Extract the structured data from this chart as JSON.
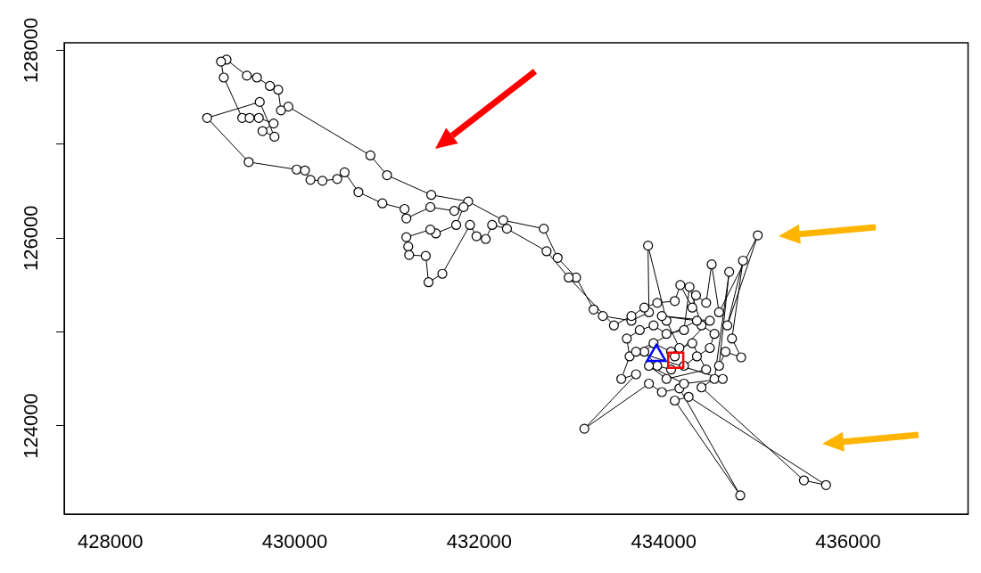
{
  "chart_data": {
    "type": "line",
    "xlim": [
      427500,
      437300
    ],
    "ylim": [
      123060,
      128080
    ],
    "xticks": [
      428000,
      430000,
      432000,
      434000,
      436000
    ],
    "yticks": [
      124000,
      {
        "value": 125000,
        "label": null
      },
      126000,
      {
        "value": 127000,
        "label": null
      },
      128000
    ],
    "series": [
      {
        "color": "#000000",
        "marker": "circle",
        "x": [
          434170,
          434030,
          433830,
          433840,
          433650,
          433340,
          433240,
          433050,
          432850,
          432700,
          432260,
          431880,
          431480,
          431000,
          430820,
          429930,
          429850,
          429820,
          429730,
          429590,
          429480,
          429260,
          429200,
          429230,
          429430,
          429510,
          429610,
          429770,
          429650,
          429780,
          429620,
          429050,
          429500,
          430020,
          430110,
          430170,
          430300,
          430460,
          430540,
          430690,
          430950,
          431190,
          431210,
          431470,
          431730,
          431830,
          431750,
          431530,
          431470,
          431210,
          431230,
          431240,
          431420,
          431450,
          431600,
          431900,
          431970,
          432070,
          432140,
          432300,
          432730,
          432970,
          433460,
          433650,
          433790,
          433930,
          434120,
          434180,
          434310,
          434350,
          434460,
          434520,
          434600,
          435020,
          434690,
          434860,
          434740,
          434840,
          434670,
          434600,
          434710,
          434550,
          434410,
          435520,
          435760,
          434270,
          434120,
          434830,
          434170,
          433980,
          433840,
          433140,
          433700,
          433540,
          433630,
          433600,
          433740,
          433890,
          434030,
          434220,
          434280,
          434410,
          434550,
          434500,
          434360,
          434220,
          434080,
          433930,
          433790,
          433890,
          434080,
          434310,
          434460,
          434030,
          433840,
          434220,
          434640,
          433700,
          434360,
          433980,
          434500,
          434120
        ],
        "values": [
          124830,
          125120,
          125920,
          125210,
          125120,
          125170,
          125240,
          125580,
          125790,
          126100,
          126190,
          126390,
          126460,
          126670,
          126880,
          127400,
          127360,
          127580,
          127620,
          127710,
          127730,
          127900,
          127880,
          127710,
          127280,
          127280,
          127280,
          127220,
          127140,
          127080,
          127450,
          127280,
          126810,
          126730,
          126720,
          126620,
          126610,
          126630,
          126700,
          126490,
          126370,
          126310,
          126210,
          126330,
          126290,
          126330,
          126140,
          126050,
          126090,
          126010,
          125910,
          125820,
          125810,
          125530,
          125620,
          126140,
          126020,
          125990,
          126140,
          126100,
          125860,
          125580,
          125070,
          125170,
          125260,
          125310,
          125330,
          125500,
          125260,
          125390,
          125310,
          125720,
          125210,
          126030,
          125070,
          125760,
          124930,
          124730,
          124790,
          124640,
          125640,
          124500,
          124410,
          123420,
          123370,
          124310,
          124270,
          123260,
          124400,
          124360,
          124450,
          123970,
          124550,
          124500,
          124740,
          124930,
          125020,
          125070,
          124980,
          125020,
          125480,
          125070,
          124980,
          124830,
          124740,
          124640,
          124600,
          124640,
          124790,
          124880,
          124790,
          124880,
          124600,
          124500,
          124640,
          124450,
          124500,
          124790,
          125120,
          125170,
          125120,
          124740
        ]
      },
      {
        "type": "scatter",
        "color": "#0000ff",
        "marker": "triangle",
        "x": [
          433920
        ],
        "values": [
          124750
        ]
      },
      {
        "type": "scatter",
        "color": "#ff0000",
        "marker": "square",
        "x": [
          434130
        ],
        "values": [
          124700
        ]
      }
    ]
  }
}
